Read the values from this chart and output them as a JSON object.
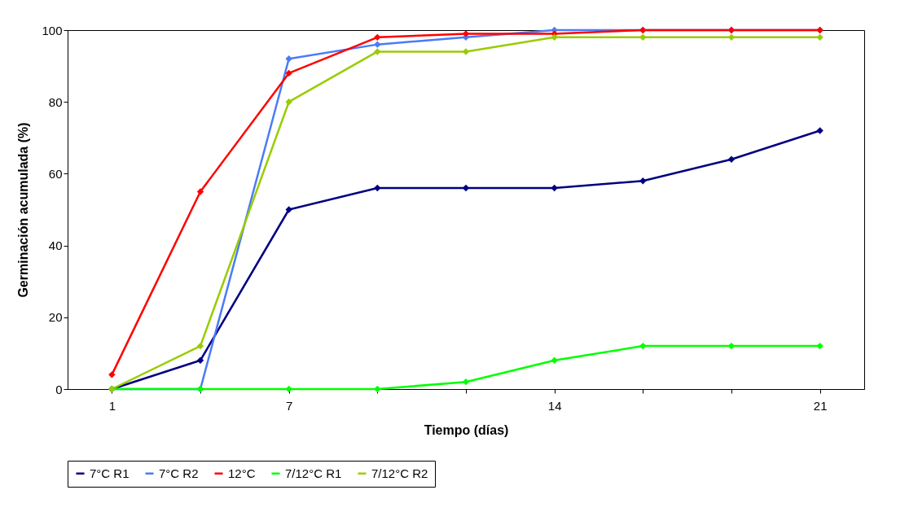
{
  "chart_data": {
    "type": "line",
    "xlabel": "Tiempo (días)",
    "ylabel": "Germinación acumulada (%)",
    "categories": [
      "1",
      null,
      "7",
      null,
      null,
      "14",
      null,
      null,
      "21"
    ],
    "series": [
      {
        "name": "7°C R1",
        "color": "#000080",
        "values": [
          0,
          8,
          50,
          56,
          56,
          56,
          58,
          64,
          72
        ]
      },
      {
        "name": "7°C R2",
        "color": "#4a7bf7",
        "values": [
          0,
          0,
          92,
          96,
          98,
          100,
          100,
          100,
          100
        ]
      },
      {
        "name": "12°C",
        "color": "#ff0000",
        "values": [
          4,
          55,
          88,
          98,
          99,
          99,
          100,
          100,
          100
        ]
      },
      {
        "name": "7/12°C R1",
        "color": "#00ff00",
        "values": [
          0,
          0,
          0,
          0,
          2,
          8,
          12,
          12,
          12
        ]
      },
      {
        "name": "7/12°C R2",
        "color": "#99cc00",
        "values": [
          0,
          12,
          80,
          94,
          94,
          98,
          98,
          98,
          98
        ]
      }
    ],
    "ylim": [
      0,
      100
    ],
    "yticks": [
      0,
      20,
      40,
      60,
      80,
      100
    ],
    "grid": false,
    "legend": "bottom",
    "marker": "diamond",
    "line_style": "solid"
  }
}
